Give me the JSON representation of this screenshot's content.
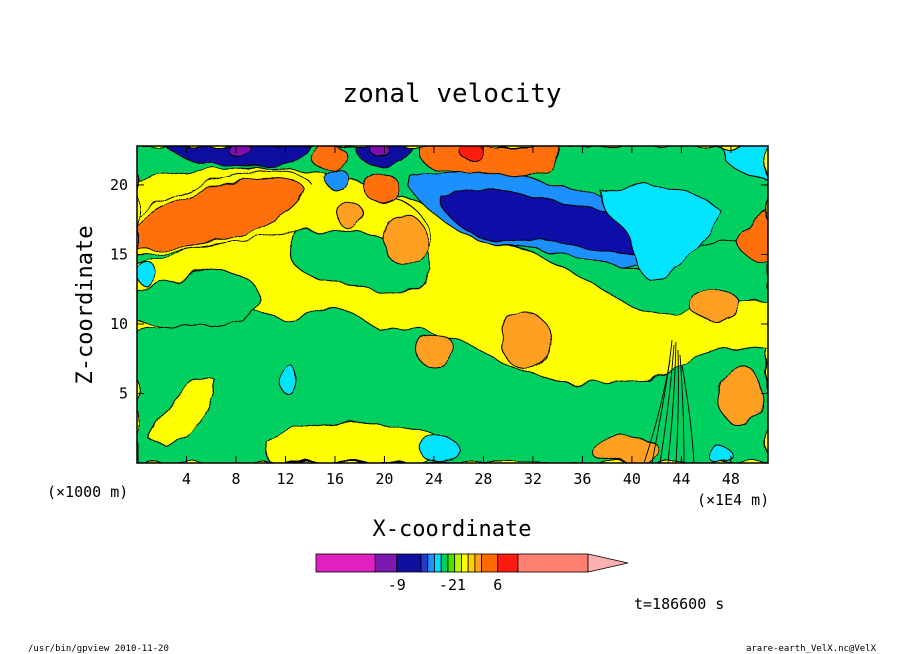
{
  "chart_data": {
    "type": "heatmap",
    "title": "zonal velocity",
    "xlabel": "X-coordinate",
    "ylabel": "Z-coordinate",
    "x_unit_left": "(×1000 m)",
    "x_unit_right": "(×1E4 m)",
    "x_ticks": [
      4,
      8,
      12,
      16,
      20,
      24,
      28,
      32,
      36,
      40,
      44,
      48
    ],
    "y_ticks": [
      5,
      10,
      15,
      20
    ],
    "xlim": [
      0,
      51
    ],
    "ylim": [
      0,
      22.8
    ],
    "colorbar": {
      "labels": [
        "-9",
        "-2",
        "1",
        "6"
      ],
      "levels": [
        -30,
        -15,
        -10,
        -8,
        -6,
        -4,
        -3,
        -2,
        -1,
        0,
        1,
        2,
        3,
        6,
        8,
        14
      ],
      "colors": [
        "#e020c0",
        "#7a18b0",
        "#1010a0",
        "#1e3cc8",
        "#1e90ff",
        "#00dcff",
        "#00d060",
        "#50e000",
        "#bbf500",
        "#ffff00",
        "#ffd000",
        "#ffa020",
        "#ff6a00",
        "#ff1a10",
        "#ff8070",
        "#ffb0b0"
      ]
    },
    "fields": [
      {
        "name": "background",
        "value": 0,
        "color": "#ffff00"
      },
      {
        "name": "low-green-band",
        "value": -2,
        "color": "#00d060"
      },
      {
        "name": "upper-orange-jet-left",
        "value": 5,
        "color": "#ff7010"
      },
      {
        "name": "upper-blue-jet-center",
        "value": -9,
        "color": "#0c10a8"
      },
      {
        "name": "upper-cyan-right",
        "value": -4,
        "color": "#00e4ff"
      },
      {
        "name": "top-purple",
        "value": -12,
        "color": "#8010b0"
      },
      {
        "name": "top-red",
        "value": 8,
        "color": "#ff1a10"
      }
    ],
    "time_label": "t=186600 s"
  },
  "footer": {
    "left": "/usr/bin/gpview  2010-11-20",
    "right": "arare-earth_VelX.nc@VelX"
  },
  "colors": {
    "axis": "#000000",
    "background": "#ffffff"
  }
}
